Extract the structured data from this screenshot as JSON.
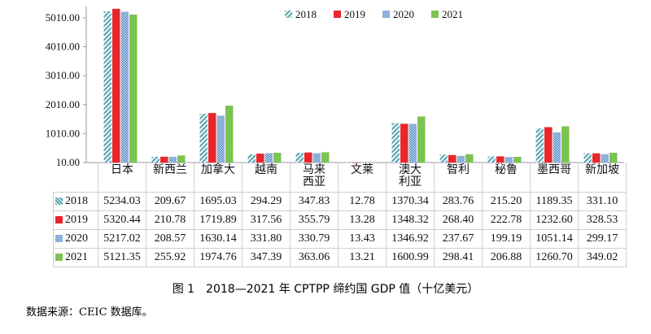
{
  "chart_data": {
    "type": "bar",
    "title": "图 1　2018—2021 年 CPTPP 缔约国 GDP 值（十亿美元）",
    "categories": [
      "日本",
      "新西兰",
      "加拿大",
      "越南",
      "马来\n西亚",
      "文莱",
      "澳大\n利亚",
      "智利",
      "秘鲁",
      "墨西哥",
      "新加坡"
    ],
    "series": [
      {
        "name": "2018",
        "color": "#5aa7b0",
        "values": [
          5234.03,
          209.67,
          1695.03,
          294.29,
          347.83,
          12.78,
          1370.34,
          283.76,
          215.2,
          1189.35,
          331.1
        ]
      },
      {
        "name": "2019",
        "color": "#e8262b",
        "values": [
          5320.44,
          210.78,
          1719.89,
          317.56,
          355.79,
          13.28,
          1348.32,
          268.4,
          222.78,
          1232.6,
          328.53
        ]
      },
      {
        "name": "2020",
        "color": "#4f86c6",
        "values": [
          5217.02,
          208.57,
          1630.14,
          331.8,
          330.79,
          13.43,
          1346.92,
          237.67,
          199.19,
          1051.14,
          299.17
        ]
      },
      {
        "name": "2021",
        "color": "#7dc352",
        "values": [
          5121.35,
          255.92,
          1974.76,
          347.39,
          363.06,
          13.21,
          1600.99,
          298.41,
          206.88,
          1260.7,
          349.02
        ]
      }
    ],
    "yticks": [
      "10.00",
      "1010.00",
      "2010.00",
      "3010.00",
      "4010.00",
      "5010.00"
    ],
    "ylim": [
      10,
      5400
    ],
    "legend": "top-center",
    "xlabel": "",
    "ylabel": ""
  },
  "source": "数据来源：CEIC 数据库。"
}
